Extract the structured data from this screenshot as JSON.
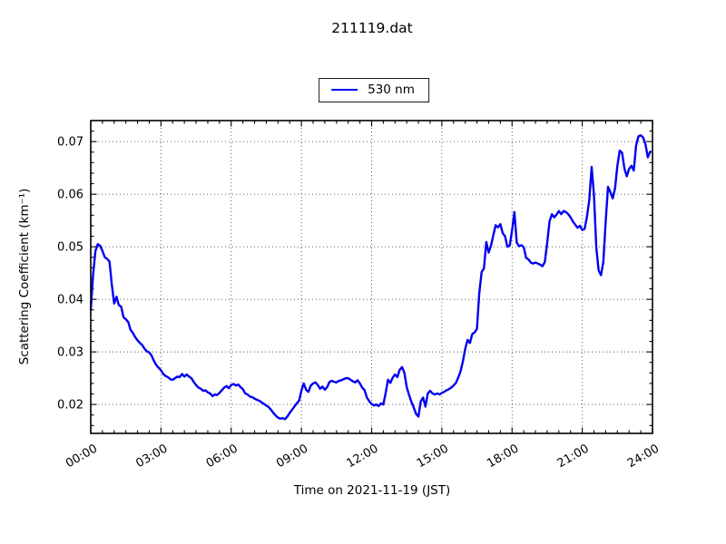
{
  "title": "211119.dat",
  "legend": {
    "label": "530 nm"
  },
  "axis": {
    "xlabel": "Time on 2021-11-19 (JST)",
    "ylabel": "Scattering Coefficient (km⁻¹)"
  },
  "chart_data": {
    "type": "line",
    "title": "211119.dat",
    "xlabel": "Time on 2021-11-19 (JST)",
    "ylabel": "Scattering Coefficient (km⁻¹)",
    "xlim_hours": [
      0,
      24
    ],
    "ylim": [
      0.0145,
      0.074
    ],
    "grid": "dotted lines at major ticks, both axes",
    "legend_position": "upper center, outside axes",
    "x_ticks": [
      {
        "hours": 0,
        "label": "00:00"
      },
      {
        "hours": 3,
        "label": "03:00"
      },
      {
        "hours": 6,
        "label": "06:00"
      },
      {
        "hours": 9,
        "label": "09:00"
      },
      {
        "hours": 12,
        "label": "12:00"
      },
      {
        "hours": 15,
        "label": "15:00"
      },
      {
        "hours": 18,
        "label": "18:00"
      },
      {
        "hours": 21,
        "label": "21:00"
      },
      {
        "hours": 24,
        "label": "24:00"
      }
    ],
    "y_ticks": [
      {
        "value": 0.02,
        "label": "0.02"
      },
      {
        "value": 0.03,
        "label": "0.03"
      },
      {
        "value": 0.04,
        "label": "0.04"
      },
      {
        "value": 0.05,
        "label": "0.05"
      },
      {
        "value": 0.06,
        "label": "0.06"
      },
      {
        "value": 0.07,
        "label": "0.07"
      }
    ],
    "x_minor_step_hours": 0.5,
    "y_minor_step": 0.002,
    "series": [
      {
        "name": "530 nm",
        "color": "#0000ee",
        "x_start_hours": 0.0,
        "x_step_hours": 0.1,
        "values": [
          0.038,
          0.0447,
          0.0492,
          0.0505,
          0.0502,
          0.0492,
          0.048,
          0.0477,
          0.0472,
          0.0428,
          0.0392,
          0.0405,
          0.0389,
          0.0386,
          0.0366,
          0.0362,
          0.0357,
          0.0342,
          0.0336,
          0.0328,
          0.0322,
          0.0317,
          0.0313,
          0.0306,
          0.0301,
          0.0299,
          0.0293,
          0.0283,
          0.0275,
          0.027,
          0.0265,
          0.0258,
          0.0254,
          0.0252,
          0.0248,
          0.0247,
          0.025,
          0.0253,
          0.0252,
          0.0258,
          0.0253,
          0.0257,
          0.0253,
          0.025,
          0.0243,
          0.0237,
          0.0232,
          0.023,
          0.0226,
          0.0227,
          0.0223,
          0.0221,
          0.0216,
          0.0219,
          0.0218,
          0.0222,
          0.0227,
          0.0232,
          0.0235,
          0.0231,
          0.0237,
          0.0239,
          0.0236,
          0.0238,
          0.0233,
          0.0229,
          0.0221,
          0.0219,
          0.0215,
          0.0214,
          0.0211,
          0.0209,
          0.0207,
          0.0204,
          0.0201,
          0.0198,
          0.0195,
          0.019,
          0.0184,
          0.0179,
          0.0175,
          0.0173,
          0.0174,
          0.0172,
          0.0177,
          0.0184,
          0.019,
          0.0196,
          0.0202,
          0.0207,
          0.0226,
          0.024,
          0.0228,
          0.0224,
          0.0236,
          0.024,
          0.0242,
          0.0237,
          0.023,
          0.0234,
          0.0228,
          0.0233,
          0.0243,
          0.0245,
          0.0243,
          0.0242,
          0.0245,
          0.0246,
          0.0248,
          0.025,
          0.025,
          0.0247,
          0.0244,
          0.0242,
          0.0246,
          0.024,
          0.0232,
          0.0227,
          0.0213,
          0.0206,
          0.0201,
          0.0198,
          0.02,
          0.0197,
          0.0202,
          0.02,
          0.0222,
          0.0247,
          0.0241,
          0.0251,
          0.0257,
          0.0252,
          0.0266,
          0.0271,
          0.026,
          0.0233,
          0.0218,
          0.0205,
          0.0194,
          0.0182,
          0.0177,
          0.0206,
          0.0213,
          0.0196,
          0.0221,
          0.0226,
          0.0221,
          0.0219,
          0.0221,
          0.0219,
          0.0222,
          0.0224,
          0.0227,
          0.0229,
          0.0232,
          0.0236,
          0.0241,
          0.0251,
          0.0263,
          0.0282,
          0.0306,
          0.0323,
          0.0317,
          0.0334,
          0.0337,
          0.0344,
          0.0412,
          0.0452,
          0.0459,
          0.0509,
          0.0489,
          0.0502,
          0.0522,
          0.0541,
          0.0537,
          0.0543,
          0.0526,
          0.052,
          0.05,
          0.0502,
          0.0531,
          0.0566,
          0.0508,
          0.0501,
          0.0503,
          0.0499,
          0.0479,
          0.0476,
          0.047,
          0.0468,
          0.047,
          0.0468,
          0.0466,
          0.0463,
          0.0471,
          0.0507,
          0.0548,
          0.0562,
          0.0556,
          0.0561,
          0.0568,
          0.0562,
          0.0568,
          0.0566,
          0.0562,
          0.0556,
          0.0548,
          0.0542,
          0.0536,
          0.054,
          0.0532,
          0.0534,
          0.0557,
          0.0589,
          0.0652,
          0.0598,
          0.0498,
          0.0455,
          0.0446,
          0.0471,
          0.0548,
          0.0614,
          0.0604,
          0.0592,
          0.0611,
          0.0654,
          0.0683,
          0.0679,
          0.0649,
          0.0634,
          0.0648,
          0.0654,
          0.0645,
          0.0693,
          0.071,
          0.0712,
          0.0708,
          0.0695,
          0.067,
          0.0681
        ]
      }
    ]
  }
}
